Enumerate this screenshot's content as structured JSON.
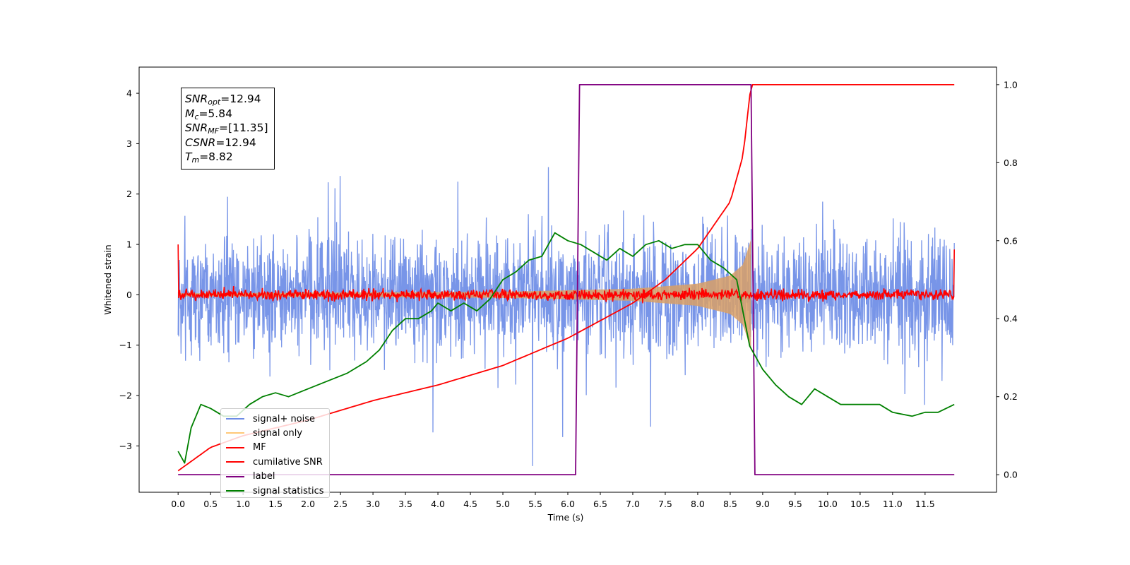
{
  "chart_data": {
    "type": "line",
    "title": "",
    "xlabel": "Time (s)",
    "ylabel": "Whitened strain",
    "xlim": [
      -0.6,
      12.6
    ],
    "ylim": [
      -3.92,
      4.52
    ],
    "y2lim": [
      -0.045,
      1.045
    ],
    "xticks": [
      "0.0",
      "0.5",
      "1.0",
      "1.5",
      "2.0",
      "2.5",
      "3.0",
      "3.5",
      "4.0",
      "4.5",
      "5.0",
      "5.5",
      "6.0",
      "6.5",
      "7.0",
      "7.5",
      "8.0",
      "8.5",
      "9.0",
      "9.5",
      "10.0",
      "10.5",
      "11.0",
      "11.5"
    ],
    "yticks": [
      "4",
      "3",
      "2",
      "1",
      "0",
      "−1",
      "−2",
      "−3"
    ],
    "y2ticks": [
      "1.0",
      "0.8",
      "0.6",
      "0.4",
      "0.2",
      "0.0"
    ],
    "grid": false,
    "legend_position": "lower-left",
    "colors": {
      "signal_noise": "#6d8ce6",
      "signal_only": "#d9a066",
      "mf": "#ff0000",
      "cumulative_snr": "#ff0000",
      "label": "#800080",
      "signal_statistics": "#008000"
    },
    "series": [
      {
        "name": "signal+ noise",
        "axis": "left",
        "description_values": {
          "t_start": 0.0,
          "t_end": 11.95,
          "baseline_amplitude_rms": 0.9
        }
      },
      {
        "name": "signal only",
        "axis": "left",
        "envelope": {
          "t": [
            0.0,
            5.0,
            7.0,
            8.0,
            8.5,
            8.7,
            8.82
          ],
          "amp": [
            0.03,
            0.06,
            0.12,
            0.22,
            0.38,
            0.6,
            1.1
          ]
        }
      },
      {
        "name": "MF",
        "axis": "left",
        "t": [
          0.0,
          11.95
        ],
        "level": 0.0,
        "noise_amp": 0.1,
        "endpoints": [
          1.0,
          0.9
        ]
      },
      {
        "name": "cumilative SNR",
        "axis": "right",
        "x": [
          0.0,
          0.5,
          1.0,
          2.0,
          3.0,
          4.0,
          5.0,
          6.0,
          7.0,
          7.5,
          8.0,
          8.5,
          8.7,
          8.82,
          11.95
        ],
        "values": [
          0.01,
          0.07,
          0.1,
          0.14,
          0.19,
          0.23,
          0.28,
          0.35,
          0.44,
          0.5,
          0.58,
          0.7,
          0.82,
          1.0,
          1.0
        ]
      },
      {
        "name": "label",
        "axis": "right",
        "x": [
          0.0,
          6.12,
          6.18,
          8.82,
          8.88,
          11.95
        ],
        "values": [
          0.0,
          0.0,
          1.0,
          1.0,
          0.0,
          0.0
        ]
      },
      {
        "name": "signal statistics",
        "axis": "right",
        "x": [
          0.0,
          0.1,
          0.2,
          0.35,
          0.5,
          0.7,
          0.9,
          1.1,
          1.3,
          1.5,
          1.7,
          2.0,
          2.3,
          2.6,
          2.9,
          3.1,
          3.3,
          3.5,
          3.7,
          3.9,
          4.0,
          4.2,
          4.4,
          4.6,
          4.8,
          5.0,
          5.2,
          5.4,
          5.6,
          5.8,
          6.0,
          6.2,
          6.4,
          6.6,
          6.8,
          7.0,
          7.2,
          7.4,
          7.6,
          7.8,
          8.0,
          8.2,
          8.4,
          8.6,
          8.8,
          9.0,
          9.2,
          9.4,
          9.6,
          9.8,
          10.0,
          10.2,
          10.5,
          10.8,
          11.0,
          11.3,
          11.5,
          11.7,
          11.95
        ],
        "values": [
          0.06,
          0.03,
          0.12,
          0.18,
          0.17,
          0.15,
          0.15,
          0.18,
          0.2,
          0.21,
          0.2,
          0.22,
          0.24,
          0.26,
          0.29,
          0.32,
          0.37,
          0.4,
          0.4,
          0.42,
          0.44,
          0.42,
          0.44,
          0.42,
          0.45,
          0.5,
          0.52,
          0.55,
          0.56,
          0.62,
          0.6,
          0.59,
          0.57,
          0.55,
          0.58,
          0.56,
          0.59,
          0.6,
          0.58,
          0.59,
          0.59,
          0.55,
          0.53,
          0.5,
          0.33,
          0.27,
          0.23,
          0.2,
          0.18,
          0.22,
          0.2,
          0.18,
          0.18,
          0.18,
          0.16,
          0.15,
          0.16,
          0.16,
          0.18
        ]
      }
    ],
    "annotations": [
      {
        "label": "SNR",
        "sub": "opt",
        "value": "=12.94"
      },
      {
        "label": "M",
        "sub": "c",
        "value": "=5.84"
      },
      {
        "label": "SNR",
        "sub": "MF",
        "value": "=[11.35]"
      },
      {
        "label": "CSNR",
        "sub": "",
        "value": "=12.94"
      },
      {
        "label": "T",
        "sub": "m",
        "value": "=8.82"
      }
    ],
    "legend": [
      "signal+ noise",
      "signal only",
      "MF",
      "cumilative SNR",
      "label",
      "signal statistics"
    ]
  }
}
